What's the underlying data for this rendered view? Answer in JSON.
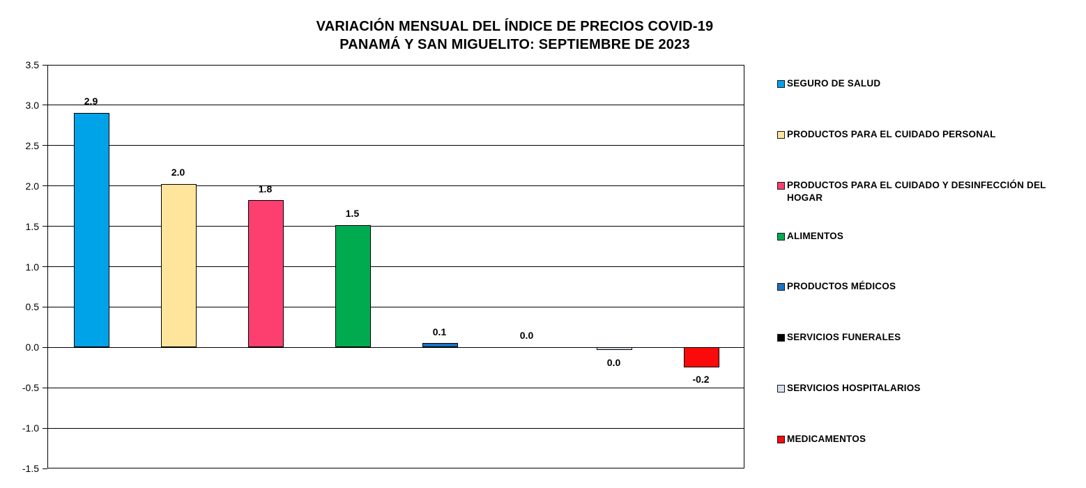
{
  "title": {
    "line1": "VARIACIÓN MENSUAL DEL ÍNDICE DE PRECIOS COVID-19",
    "line2": "PANAMÁ Y SAN MIGUELITO: SEPTIEMBRE DE 2023"
  },
  "chart_data": {
    "type": "bar",
    "title": "VARIACIÓN MENSUAL DEL ÍNDICE DE PRECIOS COVID-19 PANAMÁ Y SAN MIGUELITO: SEPTIEMBRE DE 2023",
    "categories": [
      "SEGURO DE SALUD",
      "PRODUCTOS PARA EL CUIDADO PERSONAL",
      "PRODUCTOS PARA EL CUIDADO Y DESINFECCIÓN DEL HOGAR",
      "ALIMENTOS",
      "PRODUCTOS MÉDICOS",
      "SERVICIOS FUNERALES",
      "SERVICIOS HOSPITALARIOS",
      "MEDICAMENTOS"
    ],
    "values": [
      2.9,
      2.0,
      1.8,
      1.5,
      0.1,
      0.0,
      0.0,
      -0.2
    ],
    "value_labels": [
      "2.9",
      "2.0",
      "1.8",
      "1.5",
      "0.1",
      "0.0",
      "0.0",
      "-0.2"
    ],
    "render_values": [
      2.9,
      2.02,
      1.82,
      1.51,
      0.05,
      0.0,
      -0.04,
      -0.25
    ],
    "colors": [
      "#00A2E8",
      "#FFE59B",
      "#FC3F6E",
      "#00AB4F",
      "#1B72C0",
      "#000000",
      "#D6E0ED",
      "#FA0A0A"
    ],
    "xlabel": "",
    "ylabel": "",
    "ylim": [
      -1.5,
      3.5
    ],
    "ytick_step": 0.5,
    "yticks": [
      "3.5",
      "3.0",
      "2.5",
      "2.0",
      "1.5",
      "1.0",
      "0.5",
      "0.0",
      "-0.5",
      "-1.0",
      "-1.5"
    ],
    "grid": "horizontal",
    "legend_position": "right",
    "legend": [
      {
        "label": "SEGURO DE SALUD",
        "color": "#00A2E8"
      },
      {
        "label": "PRODUCTOS PARA EL CUIDADO PERSONAL",
        "color": "#FFE59B"
      },
      {
        "label": "PRODUCTOS PARA EL CUIDADO Y DESINFECCIÓN DEL HOGAR",
        "color": "#FC3F6E"
      },
      {
        "label": "ALIMENTOS",
        "color": "#00AB4F"
      },
      {
        "label": "PRODUCTOS MÉDICOS",
        "color": "#1B72C0"
      },
      {
        "label": "SERVICIOS FUNERALES",
        "color": "#000000"
      },
      {
        "label": "SERVICIOS HOSPITALARIOS",
        "color": "#D6E0ED"
      },
      {
        "label": "MEDICAMENTOS",
        "color": "#FA0A0A"
      }
    ]
  }
}
